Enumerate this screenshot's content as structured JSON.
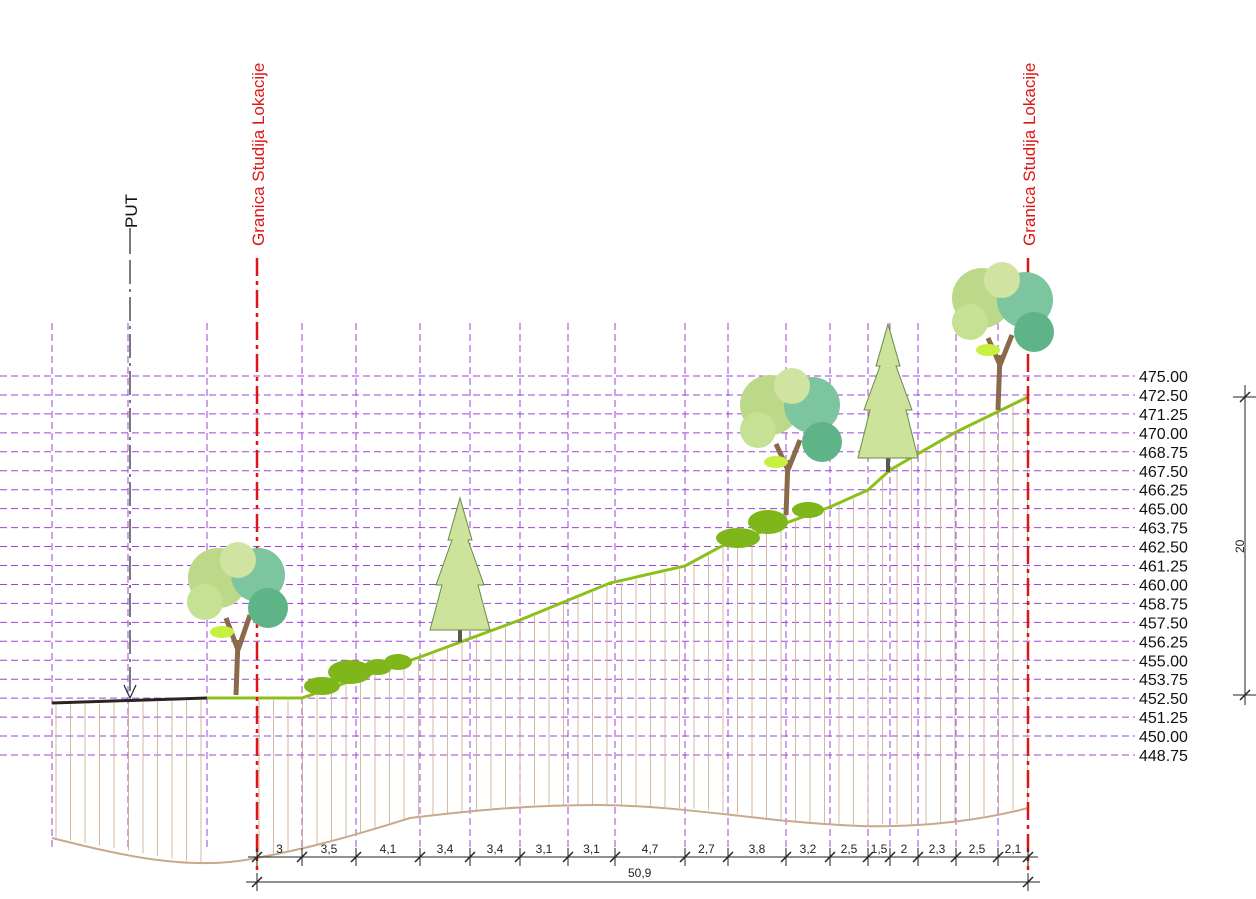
{
  "labels": {
    "boundary_left": "Granica Studija Lokacije",
    "boundary_right": "Granica Studija Lokacije",
    "road": "PUT",
    "total_width": "50,9",
    "height_dimension": "20"
  },
  "elevations": [
    "475.00",
    "472.50",
    "471.25",
    "470.00",
    "468.75",
    "467.50",
    "466.25",
    "465.00",
    "463.75",
    "462.50",
    "461.25",
    "460.00",
    "458.75",
    "457.50",
    "456.25",
    "455.00",
    "453.75",
    "452.50",
    "451.25",
    "450.00",
    "448.75"
  ],
  "segments": [
    "3",
    "3,5",
    "4,1",
    "3,4",
    "3,4",
    "3,1",
    "3,1",
    "4,7",
    "2,7",
    "3,8",
    "3,2",
    "2,5",
    "1,5",
    "2",
    "2,3",
    "2,5",
    "2,1"
  ],
  "colors": {
    "grid_purple": "#9b45d6",
    "boundary_red": "#e01414",
    "terrain_green": "#8cbf1a",
    "hatch_tan": "#c9a98c",
    "road_dark": "#2a2320"
  }
}
